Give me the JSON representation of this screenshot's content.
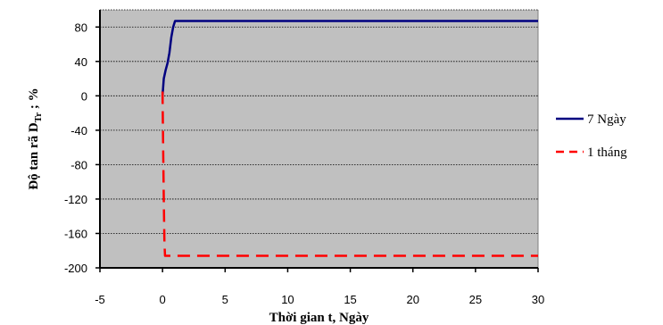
{
  "chart_data": {
    "type": "line",
    "title": "",
    "xlabel": "Thời gian t, Ngày",
    "ylabel_main": "Độ tan rã D",
    "ylabel_sub": "Tr",
    "ylabel_tail": " ; %",
    "xlim": [
      -5,
      30
    ],
    "ylim": [
      -200,
      100
    ],
    "x_ticks": [
      -5,
      0,
      5,
      10,
      15,
      20,
      25,
      30
    ],
    "y_ticks": [
      80,
      40,
      0,
      -40,
      -80,
      -120,
      -160,
      -200
    ],
    "grid": true,
    "plot_background": "#c0c0c0",
    "legend_position": "right",
    "series": [
      {
        "name": "7 Ngày",
        "color": "#000080",
        "style": "solid",
        "points": [
          [
            0,
            0
          ],
          [
            0.1,
            20
          ],
          [
            0.25,
            30
          ],
          [
            0.4,
            38
          ],
          [
            0.55,
            50
          ],
          [
            0.7,
            68
          ],
          [
            0.85,
            80
          ],
          [
            1.0,
            87
          ],
          [
            30,
            87
          ]
        ]
      },
      {
        "name": "1 tháng",
        "color": "#ff0000",
        "style": "dashed",
        "points": [
          [
            0,
            5
          ],
          [
            0.05,
            -60
          ],
          [
            0.1,
            -120
          ],
          [
            0.15,
            -170
          ],
          [
            0.2,
            -186
          ],
          [
            30,
            -186
          ]
        ]
      }
    ]
  }
}
